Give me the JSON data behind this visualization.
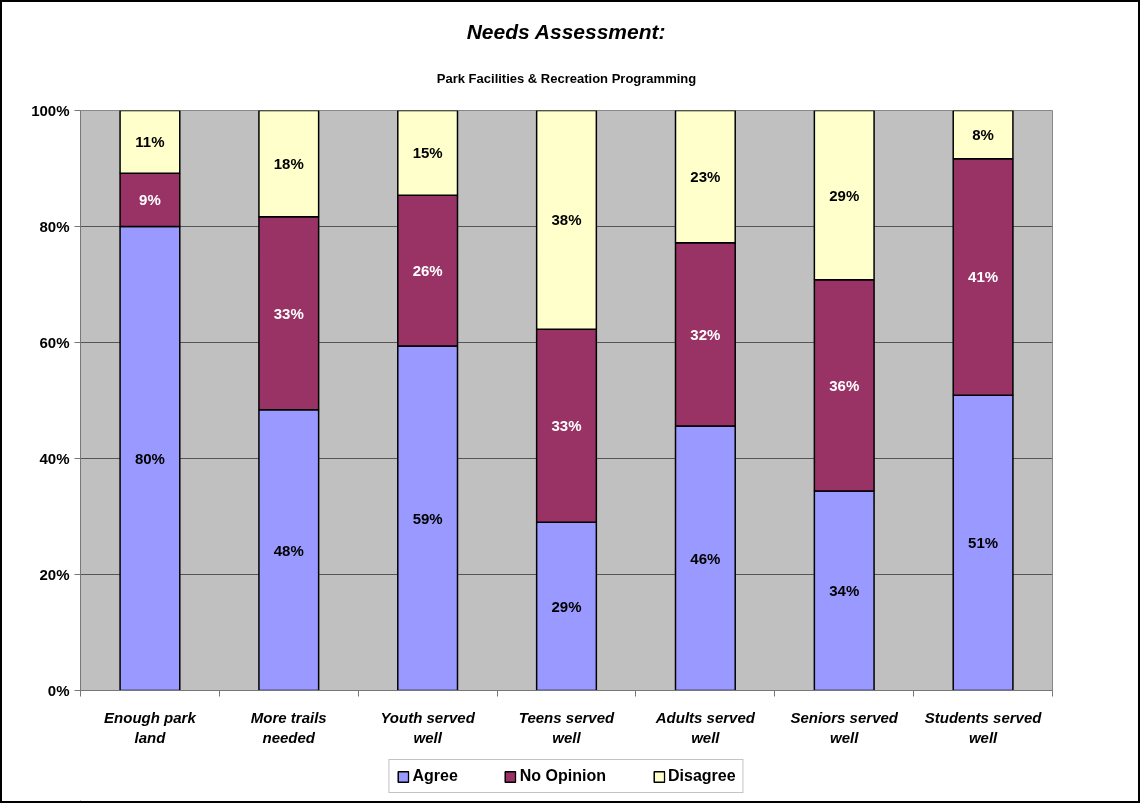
{
  "chart_data": {
    "type": "bar",
    "title": "Needs Assessment:",
    "subtitle": "Park Facilities & Recreation Programming",
    "categories": [
      "Enough park land",
      "More trails needed",
      "Youth served well",
      "Teens served well",
      "Adults served well",
      "Seniors served well",
      "Students served well"
    ],
    "stacked": true,
    "series": [
      {
        "name": "Agree",
        "color": "#9999ff",
        "values": [
          80,
          48.4,
          59.4,
          29.0,
          45.6,
          34.4,
          50.9
        ],
        "value_labels": [
          "80%",
          "48%",
          "59%",
          "29%",
          "46%",
          "34%",
          "51%"
        ]
      },
      {
        "name": "No Opinion",
        "color": "#993366",
        "values": [
          9.2,
          33.3,
          26.0,
          33.3,
          31.6,
          36.4,
          40.8
        ],
        "value_labels": [
          "9%",
          "33%",
          "26%",
          "33%",
          "32%",
          "36%",
          "41%"
        ]
      },
      {
        "name": "Disagree",
        "color": "#ffffcc",
        "values": [
          10.8,
          18.3,
          14.6,
          37.7,
          22.8,
          29.2,
          8.3
        ],
        "value_labels": [
          "11%",
          "18%",
          "15%",
          "38%",
          "23%",
          "29%",
          "8%"
        ]
      }
    ],
    "ylim": [
      0,
      100
    ],
    "yticks": [
      {
        "value": 0,
        "label": "0%"
      },
      {
        "value": 20,
        "label": "20%"
      },
      {
        "value": 40,
        "label": "40%"
      },
      {
        "value": 60,
        "label": "60%"
      },
      {
        "value": 80,
        "label": "80%"
      },
      {
        "value": 100,
        "label": "100%"
      }
    ],
    "grid": "y",
    "legend": "bottom"
  }
}
